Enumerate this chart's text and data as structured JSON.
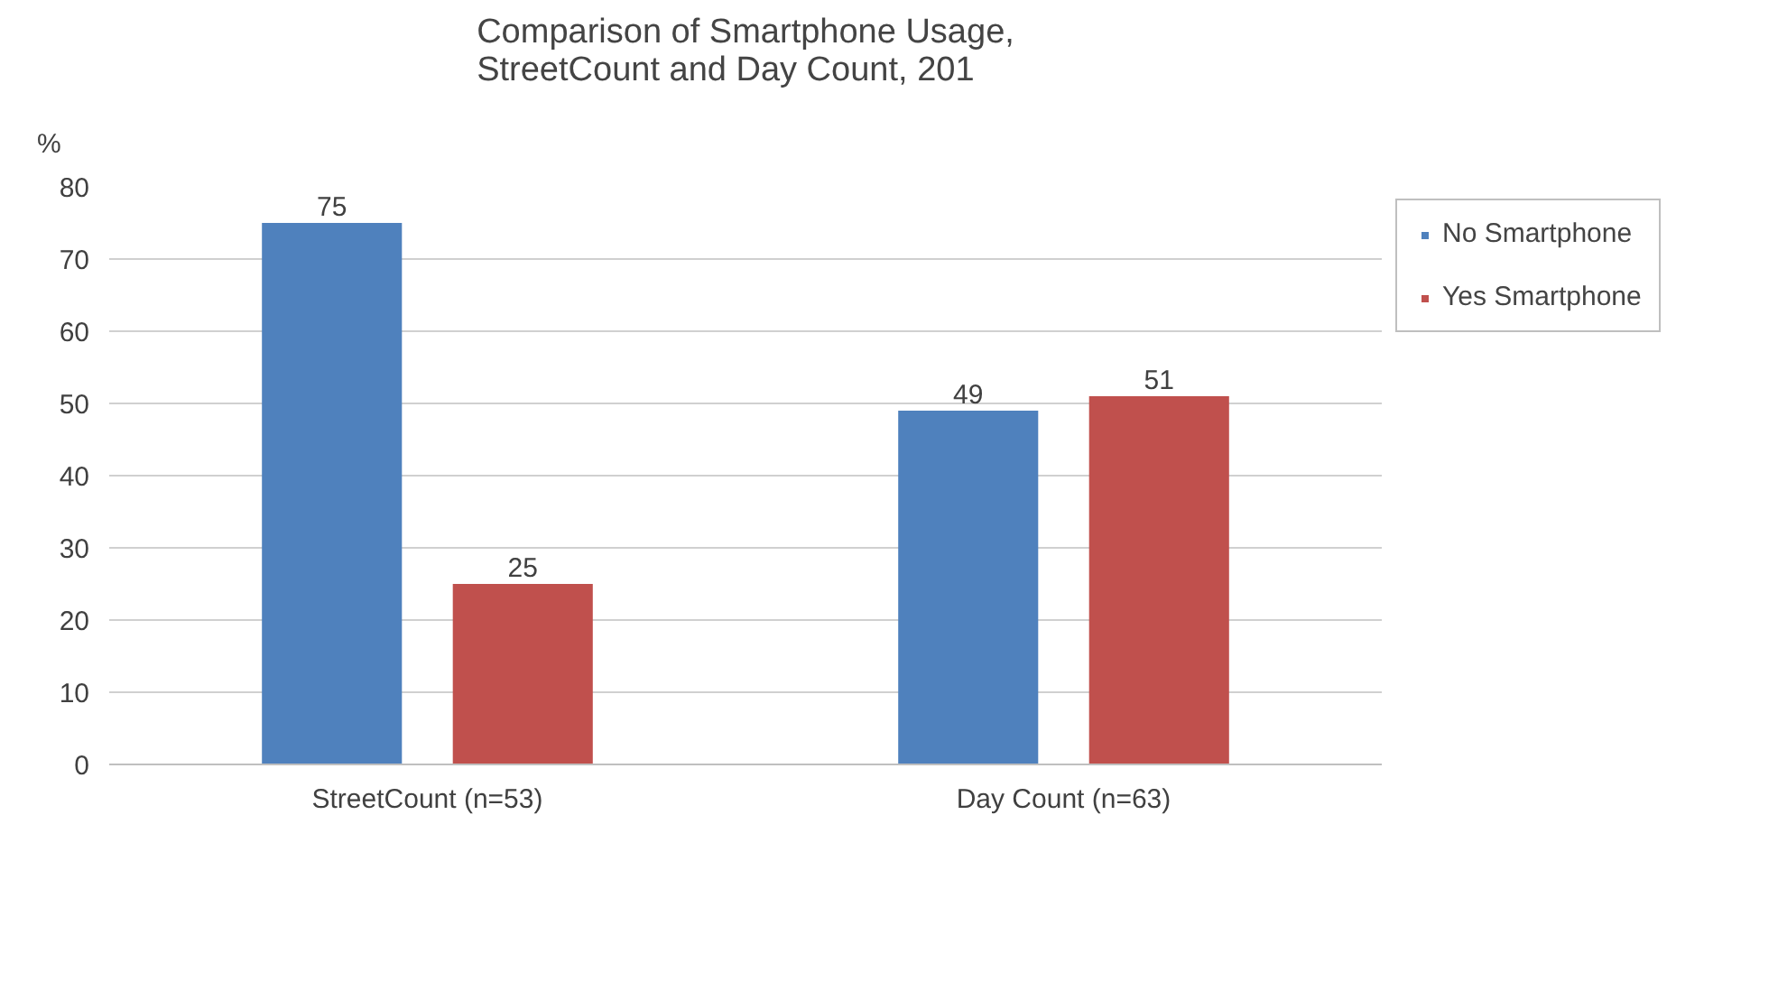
{
  "chart_data": {
    "type": "bar",
    "title": "Comparison of Smartphone Usage,\nStreetCount and Day Count, 201",
    "ylabel": "%",
    "categories": [
      "StreetCount (n=53)",
      "Day Count (n=63)"
    ],
    "series": [
      {
        "name": "No Smartphone",
        "color": "#4f81bd",
        "values": [
          75,
          49
        ]
      },
      {
        "name": "Yes Smartphone",
        "color": "#c0504d",
        "values": [
          25,
          51
        ]
      }
    ],
    "ylim": [
      0,
      80
    ],
    "yticks": [
      0,
      10,
      20,
      30,
      40,
      50,
      60,
      70,
      80
    ],
    "grid": "y",
    "legend": "right",
    "data_labels": true
  }
}
